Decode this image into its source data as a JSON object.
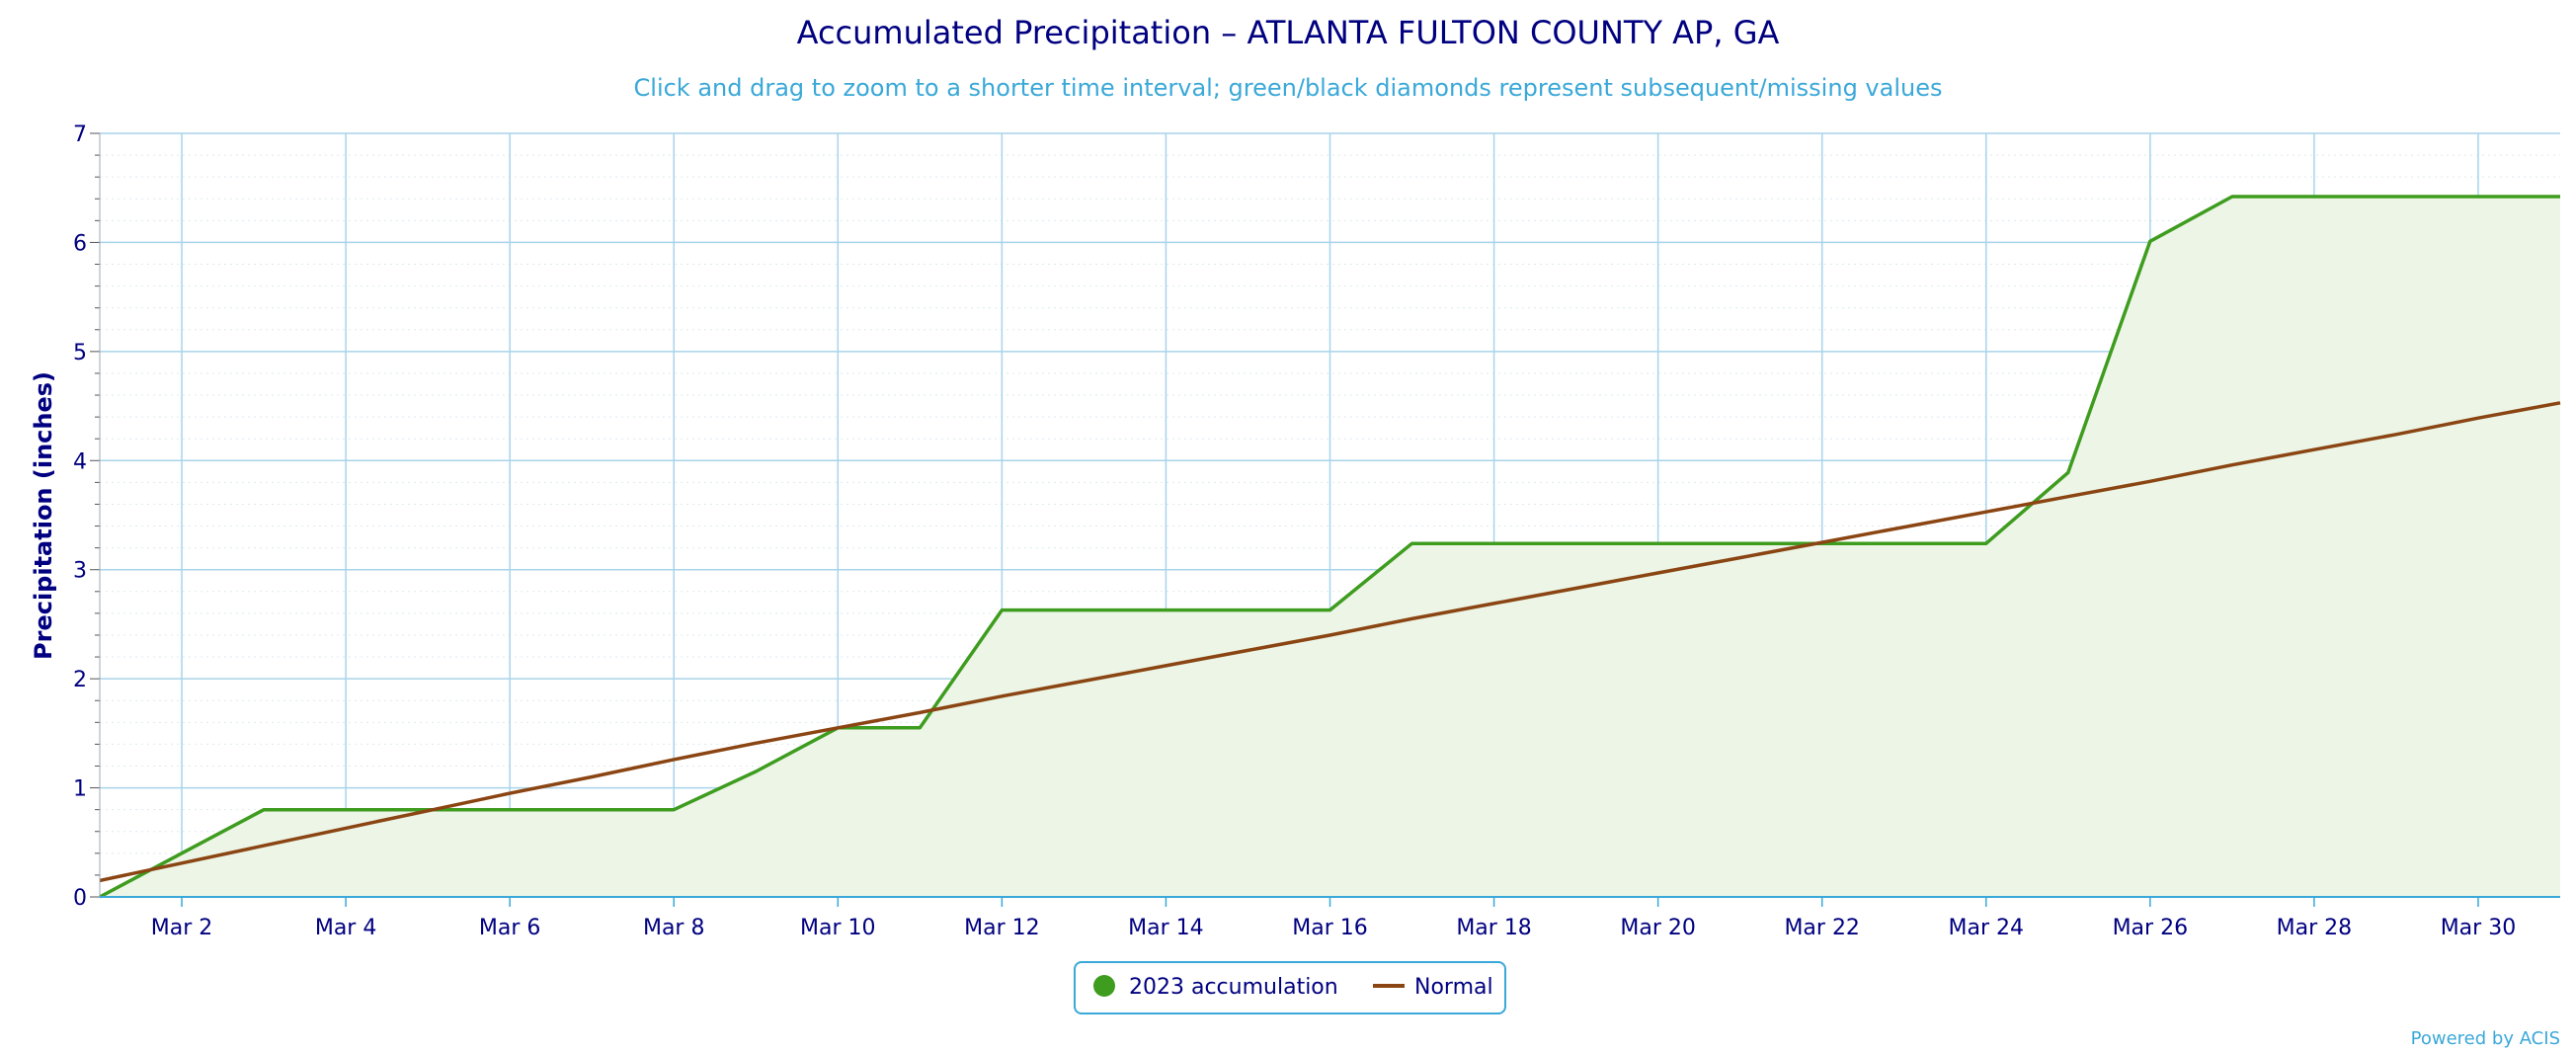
{
  "colors": {
    "title": "#000080",
    "subtitle": "#3aa8d8",
    "grid": "#a8d4ea",
    "minor_grid": "#dde9f0",
    "axis": "#3aa8d8",
    "accumulation_line": "#3e9c1f",
    "accumulation_fill": "#ecf5e6",
    "normal_line": "#8b4513",
    "legend_border": "#3aa8d8"
  },
  "chart_data": {
    "type": "area",
    "title": "Accumulated Precipitation – ATLANTA FULTON COUNTY AP, GA",
    "subtitle": "Click and drag to zoom to a shorter time interval; green/black diamonds represent subsequent/missing values",
    "ylabel": "Precipitation (inches)",
    "xlabel": "",
    "xlim": [
      1,
      31
    ],
    "ylim": [
      0,
      7
    ],
    "y_ticks": [
      0,
      1,
      2,
      3,
      4,
      5,
      6,
      7
    ],
    "x_ticks": [
      {
        "day": 2,
        "label": "Mar 2"
      },
      {
        "day": 4,
        "label": "Mar 4"
      },
      {
        "day": 6,
        "label": "Mar 6"
      },
      {
        "day": 8,
        "label": "Mar 8"
      },
      {
        "day": 10,
        "label": "Mar 10"
      },
      {
        "day": 12,
        "label": "Mar 12"
      },
      {
        "day": 14,
        "label": "Mar 14"
      },
      {
        "day": 16,
        "label": "Mar 16"
      },
      {
        "day": 18,
        "label": "Mar 18"
      },
      {
        "day": 20,
        "label": "Mar 20"
      },
      {
        "day": 22,
        "label": "Mar 22"
      },
      {
        "day": 24,
        "label": "Mar 24"
      },
      {
        "day": 26,
        "label": "Mar 26"
      },
      {
        "day": 28,
        "label": "Mar 28"
      },
      {
        "day": 30,
        "label": "Mar 30"
      }
    ],
    "grid": true,
    "legend_position": "bottom-center",
    "series": [
      {
        "name": "2023 accumulation",
        "type": "area",
        "color": "#3e9c1f",
        "x": [
          1,
          2,
          3,
          4,
          5,
          6,
          7,
          8,
          9,
          10,
          11,
          12,
          13,
          14,
          15,
          16,
          17,
          18,
          19,
          20,
          21,
          22,
          23,
          24,
          25,
          26,
          27,
          28,
          29,
          30,
          31
        ],
        "values": [
          0.0,
          0.4,
          0.8,
          0.8,
          0.8,
          0.8,
          0.8,
          0.8,
          1.15,
          1.55,
          1.55,
          2.63,
          2.63,
          2.63,
          2.63,
          2.63,
          3.24,
          3.24,
          3.24,
          3.24,
          3.24,
          3.24,
          3.24,
          3.24,
          3.89,
          6.01,
          6.42,
          6.42,
          6.42,
          6.42,
          6.42
        ]
      },
      {
        "name": "Normal",
        "type": "line",
        "color": "#8b4513",
        "x": [
          1,
          2,
          3,
          4,
          5,
          6,
          7,
          8,
          9,
          10,
          11,
          12,
          13,
          14,
          15,
          16,
          17,
          18,
          19,
          20,
          21,
          22,
          23,
          24,
          25,
          26,
          27,
          28,
          29,
          30,
          31
        ],
        "values": [
          0.15,
          0.31,
          0.47,
          0.63,
          0.79,
          0.95,
          1.1,
          1.26,
          1.41,
          1.55,
          1.69,
          1.84,
          1.98,
          2.12,
          2.26,
          2.4,
          2.55,
          2.69,
          2.83,
          2.97,
          3.11,
          3.25,
          3.39,
          3.53,
          3.67,
          3.81,
          3.96,
          4.1,
          4.24,
          4.39,
          4.53
        ]
      }
    ]
  },
  "legend": {
    "items": [
      {
        "label": "2023 accumulation",
        "icon": "circle-marker"
      },
      {
        "label": "Normal",
        "icon": "line-marker"
      }
    ]
  },
  "credit": "Powered by ACIS"
}
